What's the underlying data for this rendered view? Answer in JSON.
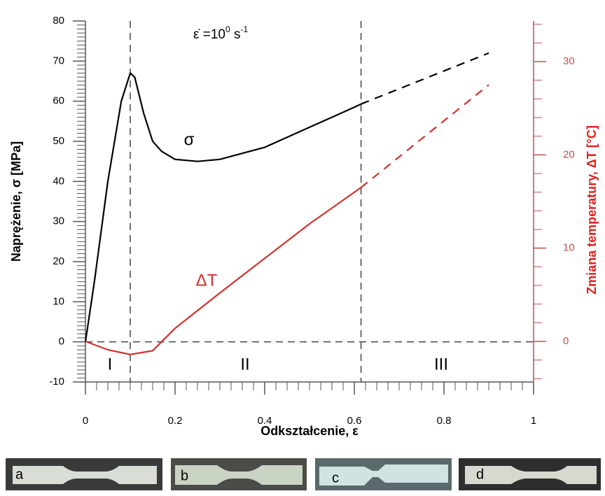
{
  "chart_data": {
    "type": "line",
    "annotation": {
      "base": "ε̇ =10",
      "exp": "0",
      "unit": " s",
      "unit_exp": "-1"
    },
    "xlabel": "Odkształcenie, ε",
    "ylabel": "Naprężenie, σ  [MPa]",
    "y2label": "Zmiana temperatury, ΔT [°C]",
    "xlim": [
      0,
      1
    ],
    "ylim": [
      -10,
      80
    ],
    "y2lim": [
      -4.35,
      34.35
    ],
    "xticks": [
      0,
      0.2,
      0.4,
      0.6,
      0.8,
      1
    ],
    "yticks": [
      -10,
      0,
      10,
      20,
      30,
      40,
      50,
      60,
      70,
      80
    ],
    "y2ticks": [
      0,
      10,
      20,
      30
    ],
    "xminor": 0.025,
    "yminor": 1,
    "y2minor": 2,
    "vlines": [
      0.1,
      0.615
    ],
    "hline": 0,
    "regions": [
      "I",
      "II",
      "III"
    ],
    "y2color": "#c0504d",
    "series": [
      {
        "name": "σ",
        "color": "#000000",
        "x": [
          0,
          0.02,
          0.05,
          0.08,
          0.1,
          0.11,
          0.13,
          0.15,
          0.17,
          0.2,
          0.25,
          0.3,
          0.35,
          0.4,
          0.45,
          0.5,
          0.55,
          0.6,
          0.615
        ],
        "values": [
          0,
          15,
          40,
          60,
          67,
          66,
          57,
          50,
          47.5,
          45.5,
          45,
          45.5,
          47,
          48.5,
          51,
          53.5,
          56,
          58.5,
          59.3
        ]
      },
      {
        "color": "#000000",
        "dashed": true,
        "x": [
          0.615,
          0.9
        ],
        "values": [
          59.3,
          72
        ]
      },
      {
        "name": "ΔT",
        "color": "#d0312d",
        "axis": "y2",
        "x": [
          0,
          0.05,
          0.1,
          0.15,
          0.2,
          0.3,
          0.4,
          0.5,
          0.615
        ],
        "values": [
          0,
          -0.9,
          -1.4,
          -1.0,
          1.4,
          5.2,
          8.9,
          12.6,
          16.5
        ]
      },
      {
        "color": "#d0312d",
        "dashed": true,
        "axis": "y2",
        "x": [
          0.615,
          0.9
        ],
        "values": [
          16.5,
          27.5
        ]
      }
    ]
  },
  "photos": [
    "a",
    "b",
    "c",
    "d"
  ]
}
